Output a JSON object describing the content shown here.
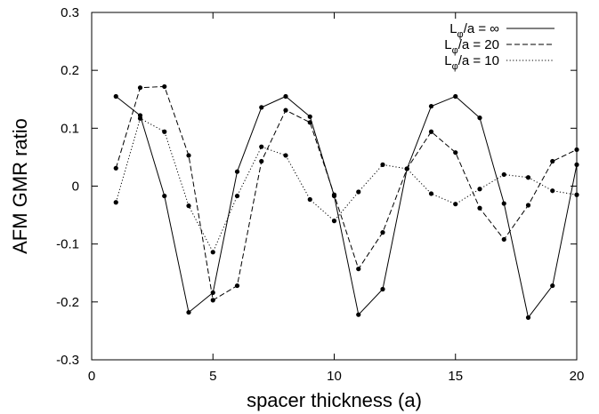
{
  "chart_data": {
    "type": "line",
    "xlabel": "spacer thickness (a)",
    "ylabel": "AFM GMR ratio",
    "xlim": [
      0,
      20
    ],
    "ylim": [
      -0.3,
      0.3
    ],
    "grid": false,
    "legend_placement": "top-right",
    "x_ticks": [
      0,
      5,
      10,
      15,
      20
    ],
    "x_tick_labels": [
      "0",
      "5",
      "10",
      "15",
      "20"
    ],
    "y_ticks": [
      -0.3,
      -0.2,
      -0.1,
      0,
      0.1,
      0.2,
      0.3
    ],
    "y_tick_labels": [
      "-0.3",
      "-0.2",
      "-0.1",
      "0",
      "0.1",
      "0.2",
      "0.3"
    ],
    "series": [
      {
        "name_main": "L",
        "name_sub": "φ",
        "name_rest": "/a = ∞",
        "style": "solid",
        "x": [
          1,
          2,
          3,
          4,
          5,
          6,
          7,
          8,
          9,
          10,
          11,
          12,
          13,
          14,
          15,
          16,
          17,
          18,
          19,
          20
        ],
        "y": [
          0.155,
          0.122,
          -0.017,
          -0.218,
          -0.184,
          0.025,
          0.136,
          0.155,
          0.12,
          -0.017,
          -0.222,
          -0.178,
          0.03,
          0.138,
          0.155,
          0.118,
          -0.03,
          -0.227,
          -0.172,
          0.037
        ]
      },
      {
        "name_main": "L",
        "name_sub": "φ",
        "name_rest": "/a = 20",
        "style": "dashed",
        "x": [
          1,
          2,
          3,
          4,
          5,
          6,
          7,
          8,
          9,
          10,
          11,
          12,
          13,
          14,
          15,
          16,
          17,
          18,
          19,
          20
        ],
        "y": [
          0.031,
          0.17,
          0.172,
          0.053,
          -0.197,
          -0.172,
          0.043,
          0.131,
          0.11,
          -0.015,
          -0.143,
          -0.08,
          0.03,
          0.094,
          0.058,
          -0.038,
          -0.092,
          -0.033,
          0.043,
          0.063
        ]
      },
      {
        "name_main": "L",
        "name_sub": "φ",
        "name_rest": "/a = 10",
        "style": "dotted",
        "x": [
          1,
          2,
          3,
          4,
          5,
          6,
          7,
          8,
          9,
          10,
          11,
          12,
          13,
          14,
          15,
          16,
          17,
          18,
          19,
          20
        ],
        "y": [
          -0.028,
          0.117,
          0.094,
          -0.034,
          -0.114,
          -0.017,
          0.068,
          0.053,
          -0.023,
          -0.06,
          -0.01,
          0.037,
          0.03,
          -0.013,
          -0.031,
          -0.005,
          0.02,
          0.015,
          -0.008,
          -0.015
        ]
      }
    ]
  }
}
